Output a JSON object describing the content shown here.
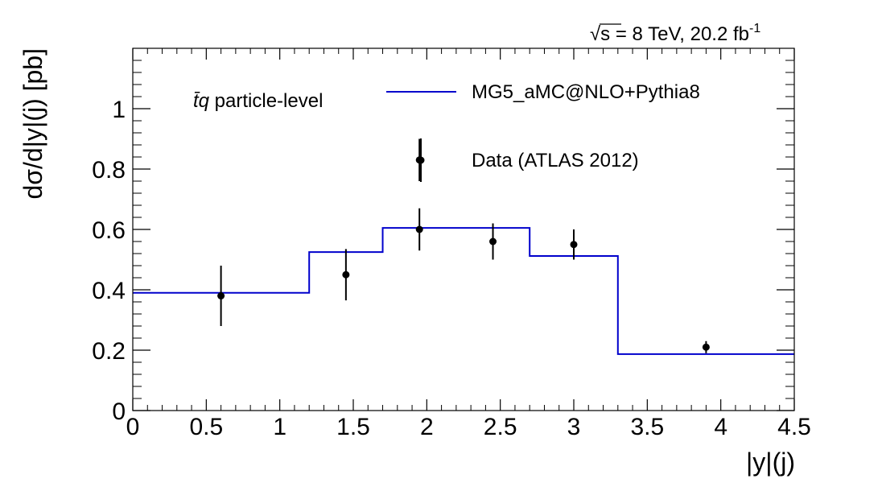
{
  "chart_data": {
    "type": "line",
    "energy_label": "√s = 8 TeV, 20.2 fb",
    "energy_label_sup": "-1",
    "process_label_prefix": "t̄q",
    "process_label_suffix": " particle-level",
    "xlabel": "|y|(j)",
    "ylabel": "dσ/d|y|(j) [pb]",
    "xlim": [
      0,
      4.5
    ],
    "ylim": [
      0,
      1.2
    ],
    "x_ticks": [
      0,
      0.5,
      1,
      1.5,
      2,
      2.5,
      3,
      3.5,
      4,
      4.5
    ],
    "x_tick_labels": [
      "0",
      "0.5",
      "1",
      "1.5",
      "2",
      "2.5",
      "3",
      "3.5",
      "4",
      "4.5"
    ],
    "y_ticks": [
      0,
      0.2,
      0.4,
      0.6,
      0.8,
      1
    ],
    "y_tick_labels": [
      "0",
      "0.2",
      "0.4",
      "0.6",
      "0.8",
      "1"
    ],
    "grid": false,
    "legend_position": "top-right",
    "series": [
      {
        "name": "MG5_aMC@NLO+Pythia8",
        "kind": "histogram",
        "color": "#0000cc",
        "bin_edges": [
          0,
          1.2,
          1.7,
          2.7,
          3.3,
          4.5
        ],
        "values": [
          0.39,
          0.525,
          0.605,
          0.512,
          0.187
        ]
      },
      {
        "name": "Data (ATLAS 2012)",
        "kind": "points",
        "color": "#000000",
        "points": [
          {
            "x": 0.6,
            "y": 0.38,
            "err": 0.1
          },
          {
            "x": 1.45,
            "y": 0.45,
            "err": 0.085
          },
          {
            "x": 1.95,
            "y": 0.83,
            "err": 0.07
          },
          {
            "x": 1.95,
            "y": 0.6,
            "err": 0.07
          },
          {
            "x": 2.45,
            "y": 0.56,
            "err": 0.06
          },
          {
            "x": 3.0,
            "y": 0.55,
            "err": 0.05
          },
          {
            "x": 3.9,
            "y": 0.21,
            "err": 0.02
          }
        ]
      }
    ]
  }
}
